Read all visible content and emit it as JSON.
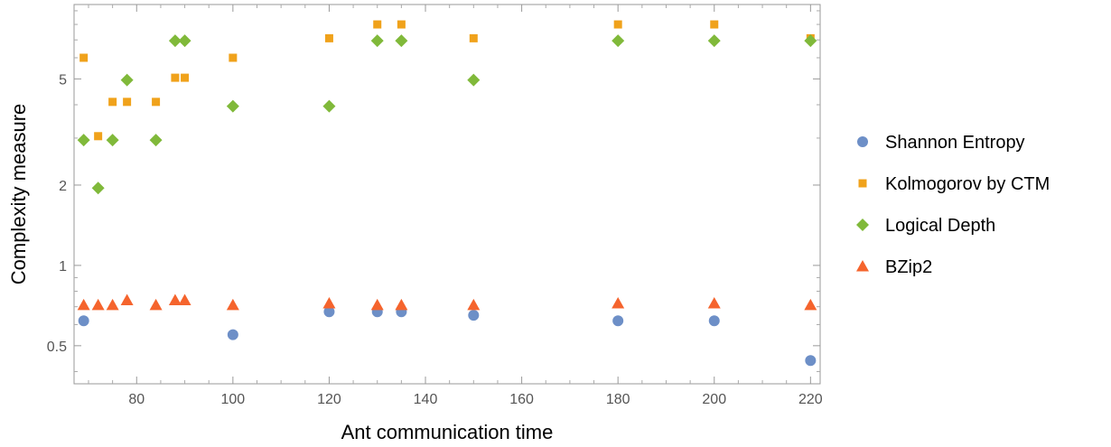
{
  "chart_data": {
    "type": "scatter",
    "title": "",
    "xlabel": "Ant communication time",
    "ylabel": "Complexity measure",
    "xlim": [
      67,
      222
    ],
    "ylim": [
      0.36,
      9.5
    ],
    "yscale": "log",
    "grid": false,
    "legend_position": "right",
    "x_ticks": [
      {
        "value": 80,
        "label": "80"
      },
      {
        "value": 100,
        "label": "100"
      },
      {
        "value": 120,
        "label": "120"
      },
      {
        "value": 140,
        "label": "140"
      },
      {
        "value": 160,
        "label": "160"
      },
      {
        "value": 180,
        "label": "180"
      },
      {
        "value": 200,
        "label": "200"
      },
      {
        "value": 220,
        "label": "220"
      }
    ],
    "y_ticks": [
      {
        "value": 0.5,
        "label": "0.5"
      },
      {
        "value": 1,
        "label": "1"
      },
      {
        "value": 2,
        "label": "2"
      },
      {
        "value": 5,
        "label": "5"
      }
    ],
    "series": [
      {
        "name": "Shannon Entropy",
        "marker": "circle",
        "color": "#6d8fc7",
        "x": [
          69,
          100,
          120,
          130,
          135,
          150,
          180,
          200,
          220
        ],
        "y": [
          0.62,
          0.55,
          0.67,
          0.67,
          0.67,
          0.65,
          0.62,
          0.62,
          0.44
        ]
      },
      {
        "name": "Kolmogorov by CTM",
        "marker": "square",
        "color": "#f0a21b",
        "x": [
          69,
          72,
          75,
          78,
          84,
          88,
          90,
          100,
          120,
          130,
          135,
          150,
          180,
          200,
          220
        ],
        "y": [
          6.0,
          3.05,
          4.1,
          4.1,
          4.1,
          5.05,
          5.05,
          6.0,
          7.1,
          8.0,
          8.0,
          7.1,
          8.0,
          8.0,
          7.1
        ]
      },
      {
        "name": "Logical Depth",
        "marker": "diamond",
        "color": "#80b93a",
        "x": [
          69,
          72,
          75,
          78,
          84,
          88,
          90,
          100,
          120,
          130,
          135,
          150,
          180,
          200,
          220
        ],
        "y": [
          2.95,
          1.95,
          2.95,
          4.95,
          2.95,
          6.95,
          6.95,
          3.95,
          3.95,
          6.95,
          6.95,
          4.95,
          6.95,
          6.95,
          6.95
        ]
      },
      {
        "name": "BZip2",
        "marker": "triangle",
        "color": "#f5642d",
        "x": [
          69,
          72,
          75,
          78,
          84,
          88,
          90,
          100,
          120,
          130,
          135,
          150,
          180,
          200,
          220
        ],
        "y": [
          0.71,
          0.71,
          0.71,
          0.74,
          0.71,
          0.74,
          0.74,
          0.71,
          0.72,
          0.71,
          0.71,
          0.71,
          0.72,
          0.72,
          0.71
        ]
      }
    ]
  }
}
